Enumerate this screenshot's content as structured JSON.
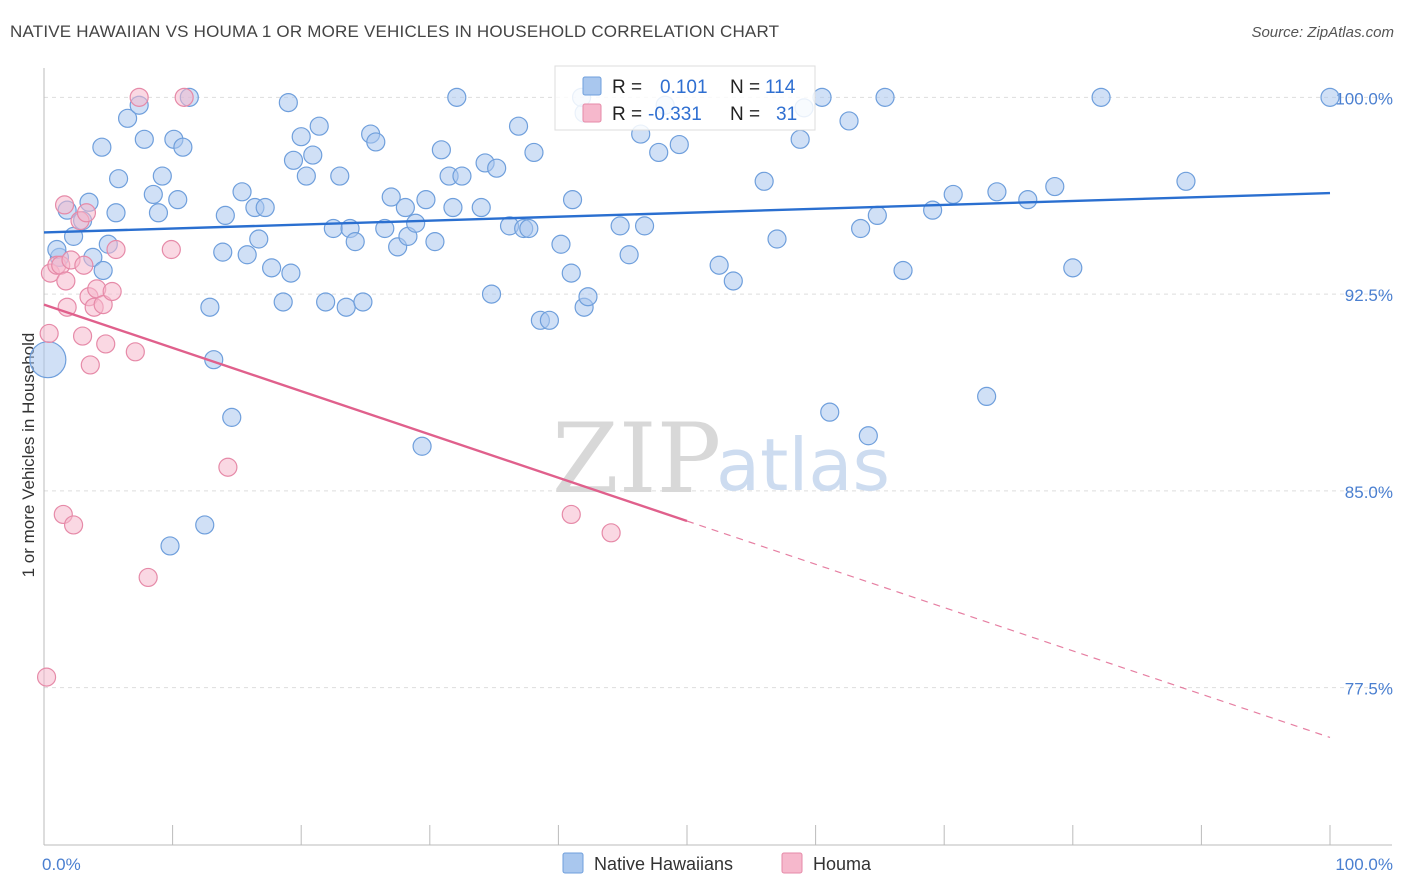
{
  "title": "NATIVE HAWAIIAN VS HOUMA 1 OR MORE VEHICLES IN HOUSEHOLD CORRELATION CHART",
  "source": "Source: ZipAtlas.com",
  "watermark": {
    "zip": "ZIP",
    "atlas": "atlas"
  },
  "chart_data": {
    "type": "scatter",
    "ylabel": "1 or more Vehicles in Household",
    "xlim": [
      0,
      100
    ],
    "ylim": [
      71.5,
      101.5
    ],
    "x_ticks": [
      "0.0%",
      "100.0%"
    ],
    "y_ticks": [
      {
        "value": 100.0,
        "label": "100.0%"
      },
      {
        "value": 92.5,
        "label": "92.5%"
      },
      {
        "value": 85.0,
        "label": "85.0%"
      },
      {
        "value": 77.5,
        "label": "77.5%"
      }
    ],
    "grid": true,
    "legend": {
      "placement": "top-center",
      "entries": [
        {
          "series": "Native Hawaiians",
          "r_label": "R =",
          "r": "0.101",
          "n_label": "N =",
          "n": "114"
        },
        {
          "series": "Houma",
          "r_label": "R =",
          "r": "-0.331",
          "n_label": "N =",
          "n": "31"
        }
      ]
    },
    "colors": {
      "Native Hawaiians": {
        "fill": "#a9c7ee",
        "stroke": "#6f9fdc",
        "line": "#2a6fd0"
      },
      "Houma": {
        "fill": "#f6b8cc",
        "stroke": "#e68aa8",
        "line": "#e0608c"
      }
    },
    "series": [
      {
        "name": "Native Hawaiians",
        "trend": {
          "x1": 0,
          "y1": 94.85,
          "x2": 100,
          "y2": 96.35
        },
        "points": [
          [
            0.3,
            90.0
          ],
          [
            1.2,
            93.9
          ],
          [
            1.8,
            95.7
          ],
          [
            2.3,
            94.7
          ],
          [
            3.0,
            95.3
          ],
          [
            3.5,
            96.0
          ],
          [
            3.8,
            93.9
          ],
          [
            4.5,
            98.1
          ],
          [
            4.6,
            93.4
          ],
          [
            5.0,
            94.4
          ],
          [
            5.6,
            95.6
          ],
          [
            5.8,
            96.9
          ],
          [
            6.5,
            99.2
          ],
          [
            7.4,
            99.7
          ],
          [
            7.8,
            98.4
          ],
          [
            8.5,
            96.3
          ],
          [
            8.9,
            95.6
          ],
          [
            9.2,
            97.0
          ],
          [
            10.1,
            98.4
          ],
          [
            10.4,
            96.1
          ],
          [
            10.8,
            98.1
          ],
          [
            11.3,
            100.0
          ],
          [
            12.9,
            92.0
          ],
          [
            13.2,
            90.0
          ],
          [
            13.9,
            94.1
          ],
          [
            14.1,
            95.5
          ],
          [
            14.6,
            87.8
          ],
          [
            15.4,
            96.4
          ],
          [
            15.8,
            94.0
          ],
          [
            16.4,
            95.8
          ],
          [
            16.7,
            94.6
          ],
          [
            17.2,
            95.8
          ],
          [
            17.7,
            93.5
          ],
          [
            18.6,
            92.2
          ],
          [
            19.2,
            93.3
          ],
          [
            19.4,
            97.6
          ],
          [
            20.0,
            98.5
          ],
          [
            20.4,
            97.0
          ],
          [
            20.9,
            97.8
          ],
          [
            21.4,
            98.9
          ],
          [
            21.9,
            92.2
          ],
          [
            22.5,
            95.0
          ],
          [
            23.0,
            97.0
          ],
          [
            23.5,
            92.0
          ],
          [
            23.8,
            95.0
          ],
          [
            24.2,
            94.5
          ],
          [
            24.8,
            92.2
          ],
          [
            25.4,
            98.6
          ],
          [
            25.8,
            98.3
          ],
          [
            26.5,
            95.0
          ],
          [
            27.0,
            96.2
          ],
          [
            27.5,
            94.3
          ],
          [
            28.1,
            95.8
          ],
          [
            28.3,
            94.7
          ],
          [
            28.9,
            95.2
          ],
          [
            29.4,
            86.7
          ],
          [
            29.7,
            96.1
          ],
          [
            30.4,
            94.5
          ],
          [
            30.9,
            98.0
          ],
          [
            31.5,
            97.0
          ],
          [
            31.8,
            95.8
          ],
          [
            32.1,
            100.0
          ],
          [
            32.5,
            97.0
          ],
          [
            34.0,
            95.8
          ],
          [
            34.3,
            97.5
          ],
          [
            34.8,
            92.5
          ],
          [
            35.2,
            97.3
          ],
          [
            36.2,
            95.1
          ],
          [
            36.9,
            98.9
          ],
          [
            37.3,
            95.0
          ],
          [
            37.7,
            95.0
          ],
          [
            38.1,
            97.9
          ],
          [
            38.6,
            91.5
          ],
          [
            39.3,
            91.5
          ],
          [
            40.2,
            94.4
          ],
          [
            41.0,
            93.3
          ],
          [
            41.1,
            96.1
          ],
          [
            42.0,
            99.4
          ],
          [
            42.0,
            92.0
          ],
          [
            42.3,
            92.4
          ],
          [
            44.8,
            95.1
          ],
          [
            45.5,
            94.0
          ],
          [
            46.4,
            98.6
          ],
          [
            46.7,
            95.1
          ],
          [
            47.8,
            97.9
          ],
          [
            49.4,
            98.2
          ],
          [
            52.5,
            93.6
          ],
          [
            53.6,
            93.0
          ],
          [
            57.0,
            94.6
          ],
          [
            58.8,
            98.4
          ],
          [
            61.1,
            88.0
          ],
          [
            62.6,
            99.1
          ],
          [
            63.5,
            95.0
          ],
          [
            64.1,
            87.1
          ],
          [
            64.8,
            95.5
          ],
          [
            66.8,
            93.4
          ],
          [
            69.1,
            95.7
          ],
          [
            70.7,
            96.3
          ],
          [
            73.3,
            88.6
          ],
          [
            74.1,
            96.4
          ],
          [
            76.5,
            96.1
          ],
          [
            78.6,
            96.6
          ],
          [
            80.0,
            93.5
          ],
          [
            82.2,
            100.0
          ],
          [
            88.8,
            96.8
          ],
          [
            100.0,
            100.0
          ],
          [
            1.0,
            94.2
          ],
          [
            9.8,
            82.9
          ],
          [
            12.5,
            83.7
          ],
          [
            19.0,
            99.8
          ],
          [
            41.8,
            100.0
          ],
          [
            56.0,
            96.8
          ],
          [
            60.5,
            100.0
          ],
          [
            65.4,
            100.0
          ],
          [
            48.3,
            99.7
          ],
          [
            59.1,
            99.6
          ]
        ]
      },
      {
        "name": "Houma",
        "trend": {
          "x1": 0,
          "y1": 92.1,
          "x2": 50,
          "y2": 83.85,
          "dash_x2": 100,
          "dash_y2": 75.6
        },
        "points": [
          [
            0.2,
            77.9
          ],
          [
            0.4,
            91.0
          ],
          [
            0.5,
            93.3
          ],
          [
            1.0,
            93.6
          ],
          [
            1.3,
            93.6
          ],
          [
            1.5,
            84.1
          ],
          [
            1.6,
            95.9
          ],
          [
            1.7,
            93.0
          ],
          [
            1.8,
            92.0
          ],
          [
            2.1,
            93.8
          ],
          [
            2.3,
            83.7
          ],
          [
            2.8,
            95.3
          ],
          [
            3.0,
            90.9
          ],
          [
            3.1,
            93.6
          ],
          [
            3.3,
            95.6
          ],
          [
            3.5,
            92.4
          ],
          [
            3.6,
            89.8
          ],
          [
            3.9,
            92.0
          ],
          [
            4.1,
            92.7
          ],
          [
            4.6,
            92.1
          ],
          [
            4.8,
            90.6
          ],
          [
            5.3,
            92.6
          ],
          [
            5.6,
            94.2
          ],
          [
            7.1,
            90.3
          ],
          [
            7.4,
            100.0
          ],
          [
            8.1,
            81.7
          ],
          [
            9.9,
            94.2
          ],
          [
            10.9,
            100.0
          ],
          [
            14.3,
            85.9
          ],
          [
            41.0,
            84.1
          ],
          [
            44.1,
            83.4
          ]
        ]
      }
    ]
  }
}
